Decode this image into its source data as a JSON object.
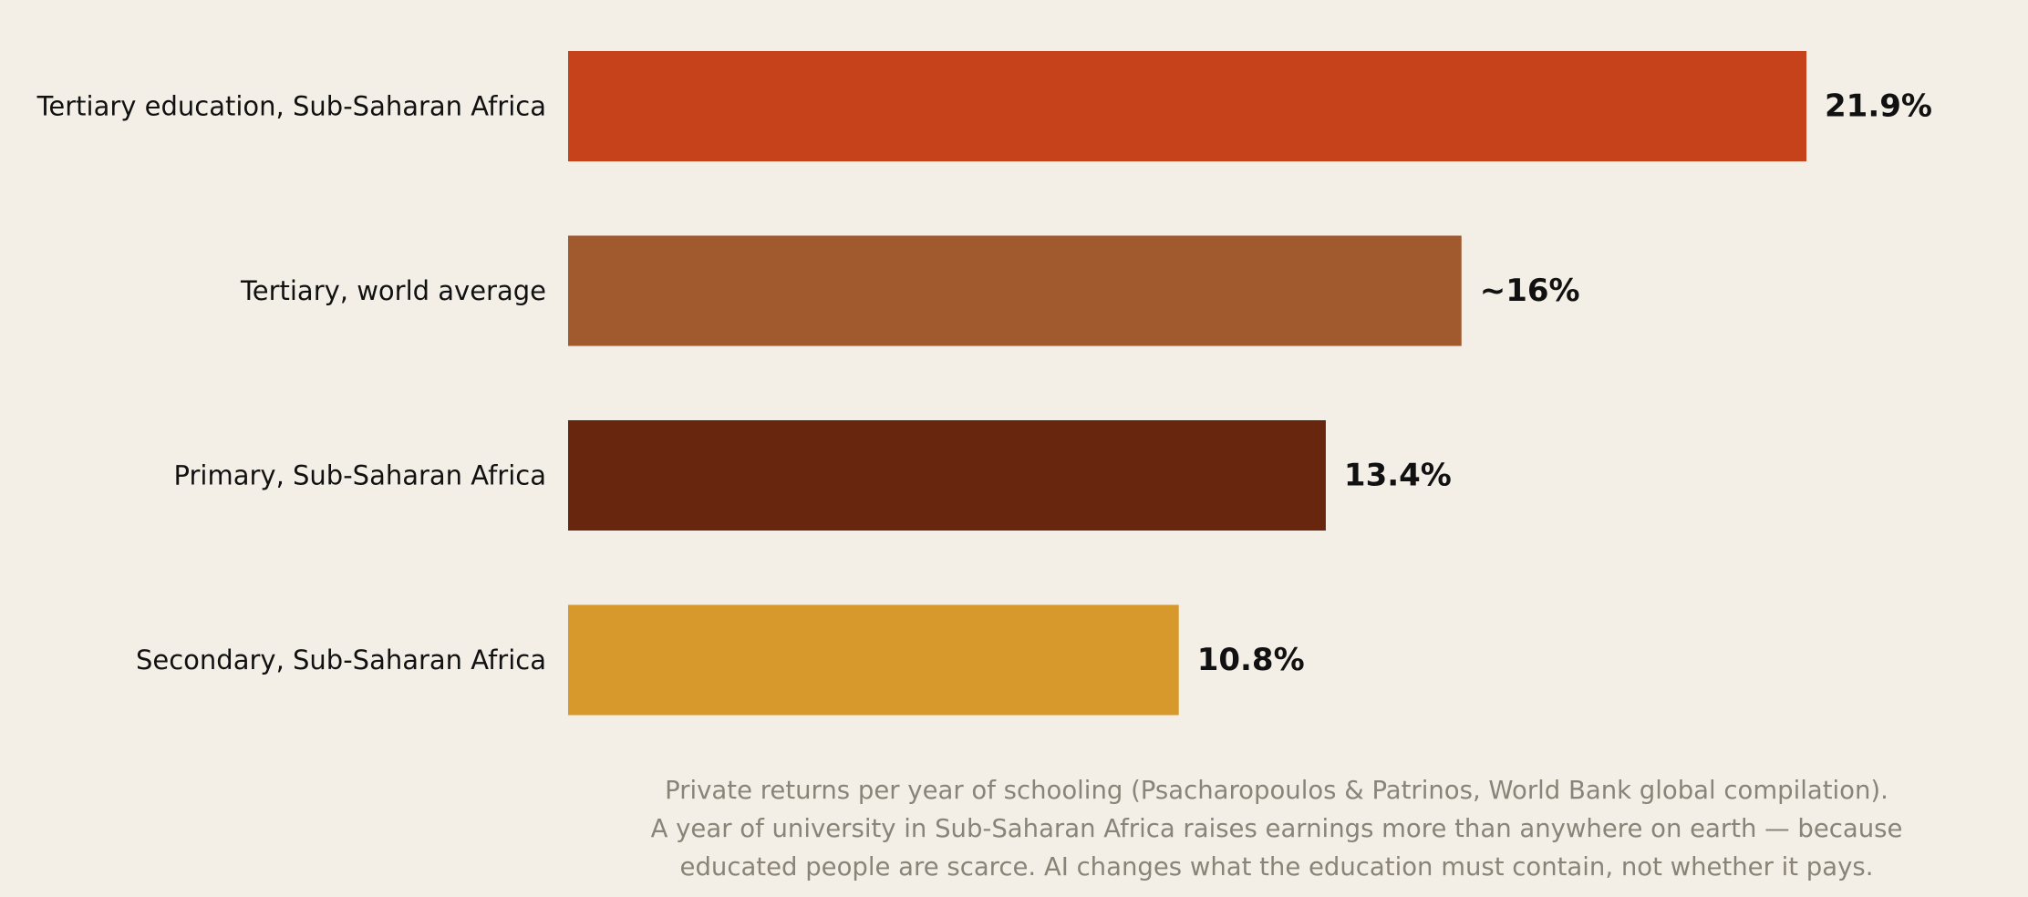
{
  "chart_data": {
    "type": "bar",
    "orientation": "horizontal",
    "categories": [
      "Tertiary education, Sub-Saharan Africa",
      "Tertiary, world average",
      "Primary, Sub-Saharan Africa",
      "Secondary, Sub-Saharan Africa"
    ],
    "values": [
      21.9,
      15.8,
      13.4,
      10.8
    ],
    "value_labels": [
      "21.9%",
      "~16%",
      "13.4%",
      "10.8%"
    ],
    "colors": [
      "#c6421b",
      "#a05a2d",
      "#68260e",
      "#d8992c"
    ],
    "xlim": [
      0,
      21.9
    ],
    "grid": false,
    "axes_visible": false
  },
  "caption": {
    "lines": [
      "Private returns per year of schooling (Psacharopoulos & Patrinos, World Bank global compilation).",
      "A year of university in Sub-Saharan Africa raises earnings more than anywhere on earth — because",
      "educated people are scarce. AI changes what the education must contain, not whether it pays."
    ]
  }
}
